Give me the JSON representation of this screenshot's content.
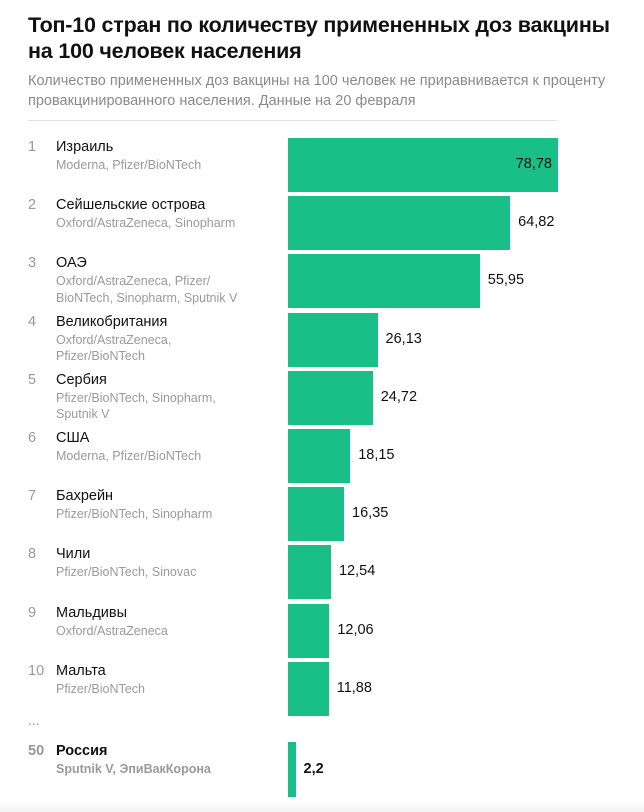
{
  "header": {
    "title": "Топ-10 стран по количеству примененных доз вакцины на 100 человек населения",
    "subtitle": "Количество примененных доз вакцины на 100 человек не приравнивается к проценту провакцинированного населения. Данные на 20 февраля"
  },
  "ellipsis": "...",
  "colors": {
    "bar": "#1abf88"
  },
  "chart_data": {
    "type": "bar",
    "orientation": "horizontal",
    "xlim": [
      0,
      78.78
    ],
    "grid": false,
    "legend": "none",
    "rows": [
      {
        "rank": "1",
        "country": "Израиль",
        "vaccines": "Moderna, Pfizer/BioNTech",
        "label": "78,78",
        "value": 78.78
      },
      {
        "rank": "2",
        "country": "Сейшельские острова",
        "vaccines": "Oxford/AstraZeneca, Sinopharm",
        "label": "64,82",
        "value": 64.82
      },
      {
        "rank": "3",
        "country": "ОАЭ",
        "vaccines": "Oxford/AstraZeneca, Pfizer/ BioNTech, Sinopharm, Sputnik V",
        "label": "55,95",
        "value": 55.95
      },
      {
        "rank": "4",
        "country": "Великобритания",
        "vaccines": "Oxford/AstraZeneca, Pfizer/BioNTech",
        "label": "26,13",
        "value": 26.13
      },
      {
        "rank": "5",
        "country": "Сербия",
        "vaccines": "Pfizer/BioNTech, Sinopharm, Sputnik V",
        "label": "24,72",
        "value": 24.72
      },
      {
        "rank": "6",
        "country": "США",
        "vaccines": "Moderna, Pfizer/BioNTech",
        "label": "18,15",
        "value": 18.15
      },
      {
        "rank": "7",
        "country": "Бахрейн",
        "vaccines": "Pfizer/BioNTech, Sinopharm",
        "label": "16,35",
        "value": 16.35
      },
      {
        "rank": "8",
        "country": "Чили",
        "vaccines": "Pfizer/BioNTech, Sinovac",
        "label": "12,54",
        "value": 12.54
      },
      {
        "rank": "9",
        "country": "Мальдивы",
        "vaccines": "Oxford/AstraZeneca",
        "label": "12,06",
        "value": 12.06
      },
      {
        "rank": "10",
        "country": "Мальта",
        "vaccines": "Pfizer/BioNTech",
        "label": "11,88",
        "value": 11.88
      },
      {
        "rank": "50",
        "country": "Россия",
        "vaccines": "Sputnik V, ЭпиВакКорона",
        "label": "2,2",
        "value": 2.2,
        "highlight": true
      }
    ]
  }
}
